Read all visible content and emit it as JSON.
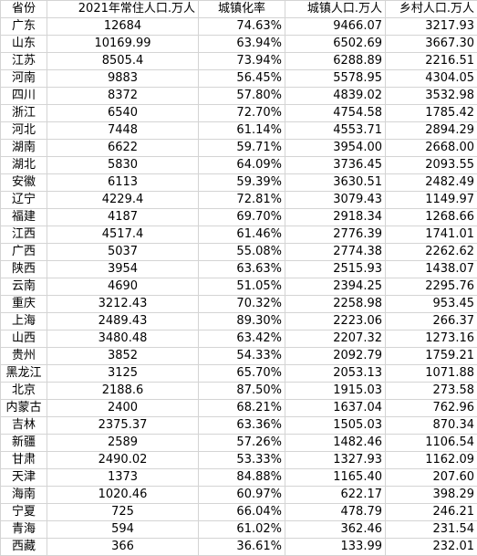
{
  "headers": {
    "province": "省份",
    "population": "2021年常住人口.万人",
    "urbanization_rate": "城镇化率",
    "urban_population": "城镇人口.万人",
    "rural_population": "乡村人口.万人"
  },
  "rows": [
    [
      "广东",
      "12684",
      "74.63%",
      "9466.07",
      "3217.93"
    ],
    [
      "山东",
      "10169.99",
      "63.94%",
      "6502.69",
      "3667.30"
    ],
    [
      "江苏",
      "8505.4",
      "73.94%",
      "6288.89",
      "2216.51"
    ],
    [
      "河南",
      "9883",
      "56.45%",
      "5578.95",
      "4304.05"
    ],
    [
      "四川",
      "8372",
      "57.80%",
      "4839.02",
      "3532.98"
    ],
    [
      "浙江",
      "6540",
      "72.70%",
      "4754.58",
      "1785.42"
    ],
    [
      "河北",
      "7448",
      "61.14%",
      "4553.71",
      "2894.29"
    ],
    [
      "湖南",
      "6622",
      "59.71%",
      "3954.00",
      "2668.00"
    ],
    [
      "湖北",
      "5830",
      "64.09%",
      "3736.45",
      "2093.55"
    ],
    [
      "安徽",
      "6113",
      "59.39%",
      "3630.51",
      "2482.49"
    ],
    [
      "辽宁",
      "4229.4",
      "72.81%",
      "3079.43",
      "1149.97"
    ],
    [
      "福建",
      "4187",
      "69.70%",
      "2918.34",
      "1268.66"
    ],
    [
      "江西",
      "4517.4",
      "61.46%",
      "2776.39",
      "1741.01"
    ],
    [
      "广西",
      "5037",
      "55.08%",
      "2774.38",
      "2262.62"
    ],
    [
      "陕西",
      "3954",
      "63.63%",
      "2515.93",
      "1438.07"
    ],
    [
      "云南",
      "4690",
      "51.05%",
      "2394.25",
      "2295.76"
    ],
    [
      "重庆",
      "3212.43",
      "70.32%",
      "2258.98",
      "953.45"
    ],
    [
      "上海",
      "2489.43",
      "89.30%",
      "2223.06",
      "266.37"
    ],
    [
      "山西",
      "3480.48",
      "63.42%",
      "2207.32",
      "1273.16"
    ],
    [
      "贵州",
      "3852",
      "54.33%",
      "2092.79",
      "1759.21"
    ],
    [
      "黑龙江",
      "3125",
      "65.70%",
      "2053.13",
      "1071.88"
    ],
    [
      "北京",
      "2188.6",
      "87.50%",
      "1915.03",
      "273.58"
    ],
    [
      "内蒙古",
      "2400",
      "68.21%",
      "1637.04",
      "762.96"
    ],
    [
      "吉林",
      "2375.37",
      "63.36%",
      "1505.03",
      "870.34"
    ],
    [
      "新疆",
      "2589",
      "57.26%",
      "1482.46",
      "1106.54"
    ],
    [
      "甘肃",
      "2490.02",
      "53.33%",
      "1327.93",
      "1162.09"
    ],
    [
      "天津",
      "1373",
      "84.88%",
      "1165.40",
      "207.60"
    ],
    [
      "海南",
      "1020.46",
      "60.97%",
      "622.17",
      "398.29"
    ],
    [
      "宁夏",
      "725",
      "66.04%",
      "478.79",
      "246.21"
    ],
    [
      "青海",
      "594",
      "61.02%",
      "362.46",
      "231.54"
    ],
    [
      "西藏",
      "366",
      "36.61%",
      "133.99",
      "232.01"
    ]
  ]
}
